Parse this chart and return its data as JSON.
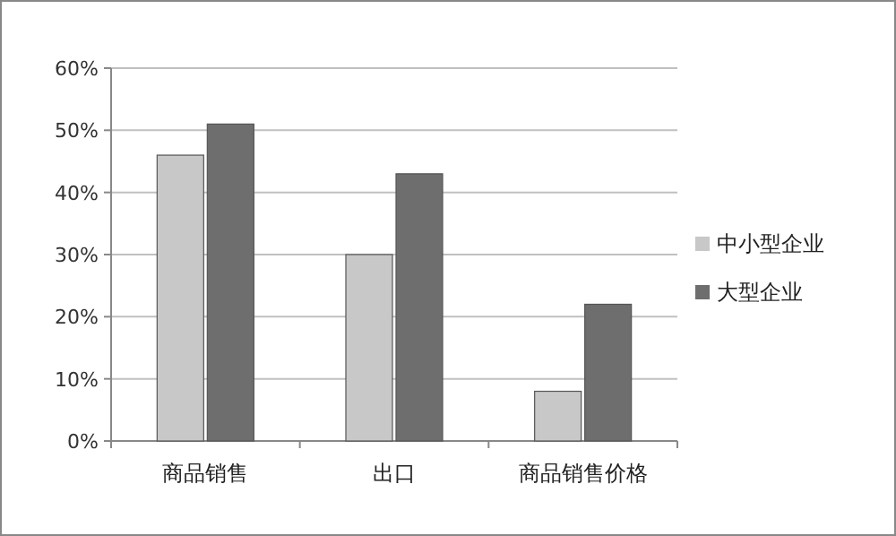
{
  "chart_data": {
    "type": "bar",
    "categories": [
      "商品销售",
      "出口",
      "商品销售价格"
    ],
    "series": [
      {
        "name": "中小型企业",
        "color": "#c8c8c8",
        "values": [
          46,
          30,
          8
        ]
      },
      {
        "name": "大型企业",
        "color": "#6e6e6e",
        "values": [
          51,
          43,
          22
        ]
      }
    ],
    "ylim": [
      0,
      60
    ],
    "yticks": [
      {
        "value": 0,
        "label": "0%"
      },
      {
        "value": 10,
        "label": "10%"
      },
      {
        "value": 20,
        "label": "20%"
      },
      {
        "value": 30,
        "label": "30%"
      },
      {
        "value": 40,
        "label": "40%"
      },
      {
        "value": 50,
        "label": "50%"
      },
      {
        "value": 60,
        "label": "60%"
      }
    ],
    "grid": "y",
    "legend": "right"
  }
}
